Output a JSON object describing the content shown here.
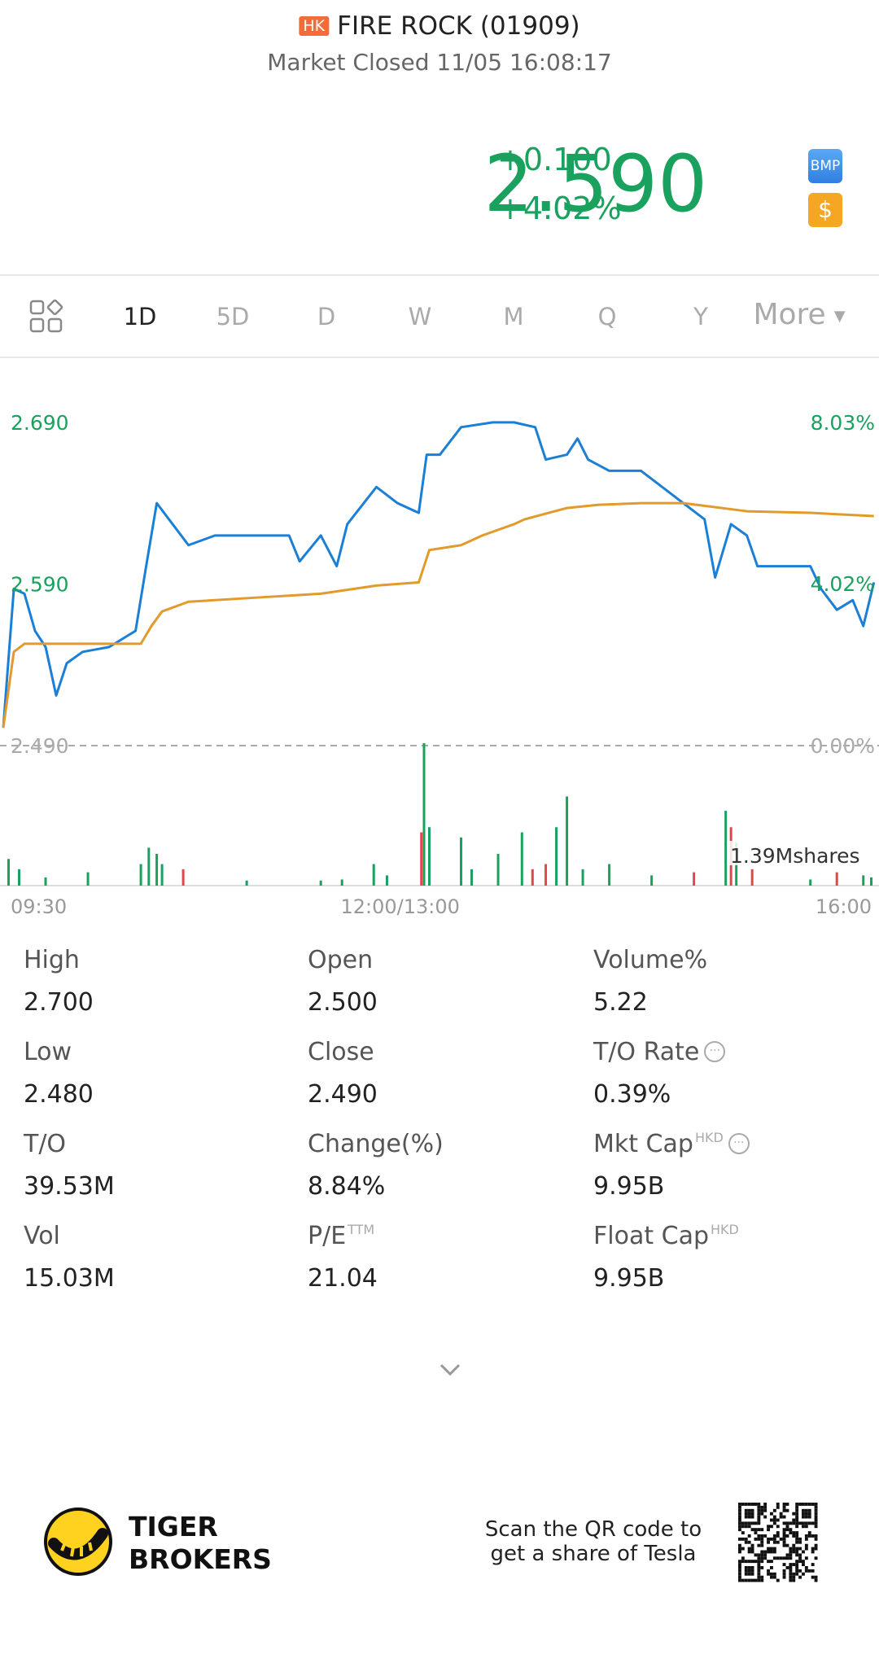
{
  "header": {
    "badge": "HK",
    "title": "FIRE ROCK (01909)",
    "status": "Market Closed 11/05 16:08:17"
  },
  "quote": {
    "price": "2.590",
    "change": "+0.100",
    "change_pct": "+4.02%",
    "icons": [
      "BMP",
      "$"
    ]
  },
  "tabs": {
    "items": [
      "1D",
      "5D",
      "D",
      "W",
      "M",
      "Q",
      "Y",
      "More"
    ],
    "active": 0
  },
  "chart_data": {
    "type": "line",
    "xlim": [
      0,
      330
    ],
    "xticks": [
      {
        "value": 0,
        "label": "09:30"
      },
      {
        "value": 150,
        "label": "12:00/13:00"
      },
      {
        "value": 330,
        "label": "16:00"
      }
    ],
    "ylim": [
      2.49,
      2.7
    ],
    "yticks": [
      {
        "value": 2.69,
        "label": "2.690"
      },
      {
        "value": 2.59,
        "label": "2.590"
      },
      {
        "value": 2.49,
        "label": "2.490"
      }
    ],
    "y2lim": [
      0,
      8.43
    ],
    "y2ticks": [
      {
        "value": 8.03,
        "label": "8.03%"
      },
      {
        "value": 4.02,
        "label": "4.02%"
      },
      {
        "value": 0,
        "label": "0.00%"
      }
    ],
    "series": [
      {
        "color": "#1c7fd6",
        "x": [
          0,
          4,
          8,
          12,
          16,
          20,
          24,
          30,
          40,
          50,
          54,
          58,
          64,
          70,
          80,
          96,
          108,
          112,
          120,
          126,
          130,
          141,
          149,
          157,
          160,
          165,
          173,
          185,
          193,
          201,
          205,
          213,
          217,
          221,
          229,
          241,
          249,
          257,
          265,
          269,
          275,
          281,
          285,
          293,
          305,
          309,
          315,
          321,
          325,
          329
        ],
        "values": [
          2.501,
          2.587,
          2.584,
          2.561,
          2.551,
          2.521,
          2.541,
          2.548,
          2.551,
          2.561,
          2.601,
          2.64,
          2.627,
          2.614,
          2.62,
          2.62,
          2.62,
          2.604,
          2.62,
          2.601,
          2.627,
          2.65,
          2.64,
          2.634,
          2.67,
          2.67,
          2.687,
          2.69,
          2.69,
          2.687,
          2.667,
          2.67,
          2.68,
          2.667,
          2.66,
          2.66,
          2.65,
          2.64,
          2.63,
          2.594,
          2.627,
          2.62,
          2.601,
          2.601,
          2.601,
          2.587,
          2.574,
          2.58,
          2.564,
          2.591
        ]
      },
      {
        "color": "#e39a2c",
        "x": [
          0,
          4,
          8,
          24,
          52,
          56,
          60,
          70,
          100,
          120,
          141,
          157,
          161,
          173,
          181,
          193,
          197,
          213,
          225,
          241,
          257,
          281,
          305,
          329
        ],
        "values": [
          2.501,
          2.548,
          2.553,
          2.553,
          2.553,
          2.564,
          2.573,
          2.579,
          2.582,
          2.584,
          2.589,
          2.591,
          2.611,
          2.614,
          2.62,
          2.627,
          2.63,
          2.637,
          2.639,
          2.64,
          2.64,
          2.635,
          2.634,
          2.632
        ]
      }
    ],
    "volume": {
      "label": "1.39Mshares",
      "ylim": [
        0,
        1.39
      ],
      "x": [
        2,
        6,
        16,
        32,
        52,
        55,
        58,
        60,
        68,
        92,
        120,
        128,
        140,
        145,
        158,
        159,
        161,
        173,
        177,
        187,
        196,
        200,
        205,
        209,
        213,
        219,
        229,
        245,
        261,
        273,
        275,
        277,
        283,
        305,
        315,
        325,
        328
      ],
      "values": [
        0.26,
        0.16,
        0.08,
        0.13,
        0.21,
        0.37,
        0.31,
        0.21,
        0.16,
        0.05,
        0.05,
        0.06,
        0.21,
        0.1,
        0.52,
        1.39,
        0.57,
        0.47,
        0.16,
        0.31,
        0.52,
        0.16,
        0.21,
        0.57,
        0.87,
        0.16,
        0.21,
        0.1,
        0.13,
        0.73,
        0.57,
        0.42,
        0.16,
        0.06,
        0.13,
        0.1,
        0.08
      ],
      "colors": [
        "#1aa15e",
        "#1aa15e",
        "#1aa15e",
        "#1aa15e",
        "#1aa15e",
        "#1aa15e",
        "#1aa15e",
        "#1aa15e",
        "#e0474c",
        "#1aa15e",
        "#1aa15e",
        "#1aa15e",
        "#1aa15e",
        "#1aa15e",
        "#e0474c",
        "#1aa15e",
        "#1aa15e",
        "#1aa15e",
        "#1aa15e",
        "#1aa15e",
        "#1aa15e",
        "#e0474c",
        "#e0474c",
        "#1aa15e",
        "#1aa15e",
        "#1aa15e",
        "#1aa15e",
        "#1aa15e",
        "#e0474c",
        "#1aa15e",
        "#e0474c",
        "#1aa15e",
        "#e0474c",
        "#1aa15e",
        "#e0474c",
        "#1aa15e",
        "#1aa15e"
      ]
    }
  },
  "stats": [
    {
      "label": "High",
      "value": "2.700"
    },
    {
      "label": "Open",
      "value": "2.500"
    },
    {
      "label": "Volume%",
      "value": "5.22"
    },
    {
      "label": "Low",
      "value": "2.480"
    },
    {
      "label": "Close",
      "value": "2.490"
    },
    {
      "label": "T/O Rate",
      "value": "0.39%",
      "info": true
    },
    {
      "label": "T/O",
      "value": "39.53M"
    },
    {
      "label": "Change(%)",
      "value": "8.84%"
    },
    {
      "label": "Mkt Cap",
      "sup": "HKD",
      "value": "9.95B",
      "info": true
    },
    {
      "label": "Vol",
      "value": "15.03M"
    },
    {
      "label": "P/E",
      "sup": "TTM",
      "value": "21.04"
    },
    {
      "label": "Float Cap",
      "sup": "HKD",
      "value": "9.95B"
    }
  ],
  "footer": {
    "brand": [
      "TIGER",
      "BROKERS"
    ],
    "promo": [
      "Scan the QR code to",
      "get a share of Tesla"
    ]
  }
}
